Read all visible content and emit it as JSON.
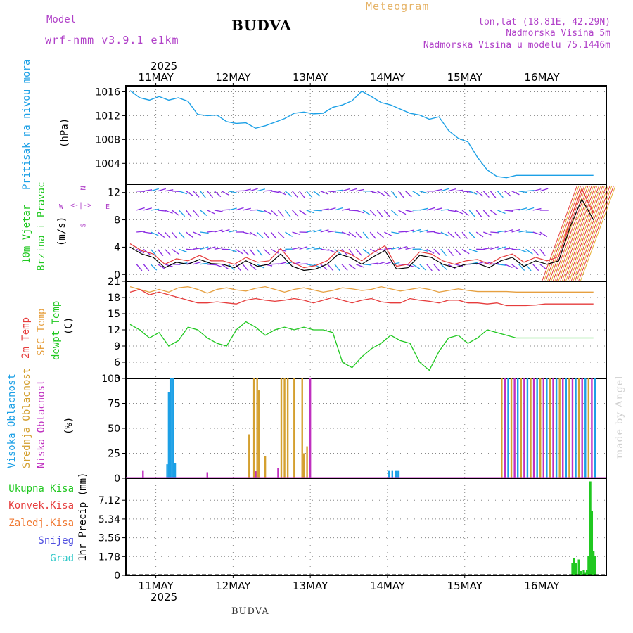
{
  "header": {
    "model_label": "Model",
    "model_name": "wrf-nmm_v3.9.1 e1km",
    "station": "BUDVA",
    "meteogram": "Meteogram",
    "lonlat": "lon,lat (18.81E, 42.29N)",
    "altitude": "Nadmorska Visina 5m",
    "model_altitude": "Nadmorska Visina u modelu 75.1446m",
    "footer_station": "BUDVA",
    "watermark": "made by Angel"
  },
  "colors": {
    "pressure": "#1ca0e6",
    "sfc_temp": "#e6a040",
    "temp2m": "#e63c3c",
    "dewpt": "#20c820",
    "high_cloud": "#1ca0e6",
    "mid_cloud": "#d4a030",
    "low_cloud": "#c030c0",
    "total_precip": "#20c820",
    "wind_line": "#000000",
    "wind_gust": "#e63c3c"
  },
  "chart_data": [
    {
      "type": "line",
      "panel": "pressure",
      "ylabel_lines": [
        "Pritisak na nivou mora"
      ],
      "unit": "(hPa)",
      "ylim": [
        1000.5,
        1017
      ],
      "yticks": [
        "1016",
        "1012",
        "1008",
        "1004"
      ],
      "ytick_values": [
        1016,
        1012,
        1008,
        1004
      ],
      "x_top_labels": [
        "11MAY",
        "12MAY",
        "13MAY",
        "14MAY",
        "15MAY",
        "16MAY"
      ],
      "x_bottom_labels": [
        "11MAY",
        "12MAY",
        "13MAY",
        "14MAY",
        "15MAY",
        "16MAY"
      ],
      "year": "2025",
      "x": [
        0,
        3,
        6,
        9,
        12,
        15,
        18,
        21,
        24,
        27,
        30,
        33,
        36,
        39,
        42,
        45,
        48,
        51,
        54,
        57,
        60,
        63,
        66,
        69,
        72,
        75,
        78,
        81,
        84,
        87,
        90,
        93,
        96,
        99,
        102,
        105,
        108,
        111,
        114,
        117,
        120,
        123,
        126,
        129,
        132,
        135,
        138,
        141,
        144
      ],
      "series": [
        {
          "values": [
            1016.2,
            1015.0,
            1014.6,
            1015.2,
            1014.6,
            1015.0,
            1014.4,
            1012.2,
            1012.0,
            1012.1,
            1011.0,
            1010.7,
            1010.8,
            1009.9,
            1010.3,
            1010.9,
            1011.5,
            1012.4,
            1012.6,
            1012.3,
            1012.4,
            1013.4,
            1013.8,
            1014.5,
            1016.1,
            1015.2,
            1014.2,
            1013.8,
            1013.1,
            1012.4,
            1012.1,
            1011.4,
            1011.8,
            1009.5,
            1008.2,
            1007.6,
            1005.0,
            1002.9,
            1001.8,
            1001.6,
            1002.0,
            1002.0,
            1002.0,
            1002.0,
            1002.0,
            1002.0,
            1002.0,
            1002.0,
            1002.0
          ]
        }
      ]
    },
    {
      "type": "line",
      "panel": "wind",
      "ylabel_lines": [
        "10m Vjetar",
        "Brzina i Pravac"
      ],
      "unit": "(m/s)",
      "compass": {
        "n": "N",
        "s": "S",
        "w": "W",
        "e": "E"
      },
      "ylim": [
        -1,
        13.2
      ],
      "yticks": [
        "12",
        "8",
        "4",
        "0"
      ],
      "ytick_values": [
        12,
        8,
        4,
        0
      ],
      "x": [
        0,
        3,
        6,
        9,
        12,
        15,
        18,
        21,
        24,
        27,
        30,
        33,
        36,
        39,
        42,
        45,
        48,
        51,
        54,
        57,
        60,
        63,
        66,
        69,
        72,
        75,
        78,
        81,
        84,
        87,
        90,
        93,
        96,
        99,
        102,
        105,
        108,
        111,
        114,
        117,
        120
      ],
      "series": [
        {
          "name": "speed",
          "values": [
            4.0,
            3.0,
            2.5,
            1.0,
            1.8,
            1.5,
            2.2,
            1.6,
            1.5,
            1.0,
            2.0,
            1.2,
            1.5,
            3.0,
            1.2,
            0.6,
            0.8,
            1.5,
            3.0,
            2.5,
            1.5,
            2.6,
            3.5,
            0.8,
            1.0,
            2.8,
            2.5,
            1.5,
            1.0,
            1.5,
            1.6,
            1.0,
            2.0,
            2.5,
            1.2,
            2.0,
            1.5,
            2.0,
            7.0,
            11.0,
            8.0
          ]
        },
        {
          "name": "gust",
          "values": [
            4.5,
            3.5,
            3.0,
            1.5,
            2.3,
            2.0,
            2.8,
            2.0,
            2.0,
            1.5,
            2.5,
            1.8,
            2.0,
            3.8,
            1.8,
            1.0,
            1.3,
            2.0,
            3.6,
            3.0,
            2.0,
            3.2,
            4.2,
            1.2,
            1.5,
            3.3,
            3.0,
            2.0,
            1.5,
            2.0,
            2.2,
            1.5,
            2.5,
            3.0,
            1.8,
            2.5,
            2.0,
            2.6,
            8.0,
            12.5,
            9.0
          ]
        }
      ]
    },
    {
      "type": "line",
      "panel": "temperature",
      "ylabel_lines": [
        "2m Temp",
        "SFC Temp",
        "dewpt Temp"
      ],
      "unit": "(C)",
      "ylim": [
        3,
        21
      ],
      "yticks": [
        "21",
        "18",
        "15",
        "12",
        "9",
        "6",
        "3"
      ],
      "ytick_values": [
        21,
        18,
        15,
        12,
        9,
        6,
        3
      ],
      "x": [
        0,
        3,
        6,
        9,
        12,
        15,
        18,
        21,
        24,
        27,
        30,
        33,
        36,
        39,
        42,
        45,
        48,
        51,
        54,
        57,
        60,
        63,
        66,
        69,
        72,
        75,
        78,
        81,
        84,
        87,
        90,
        93,
        96,
        99,
        102,
        105,
        108,
        111,
        114,
        117,
        120,
        123,
        126,
        129,
        132,
        135,
        138,
        141,
        144
      ],
      "series": [
        {
          "name": "2m Temp",
          "values": [
            19.0,
            19.5,
            18.5,
            19.0,
            18.5,
            18.0,
            17.5,
            17.0,
            17.0,
            17.2,
            17.0,
            16.8,
            17.5,
            17.8,
            17.5,
            17.3,
            17.5,
            17.8,
            17.5,
            17.0,
            17.5,
            18.0,
            17.5,
            17.0,
            17.5,
            17.8,
            17.2,
            17.0,
            17.0,
            17.8,
            17.5,
            17.3,
            17.0,
            17.5,
            17.5,
            17.0,
            17.0,
            16.8,
            17.0,
            16.5,
            16.5,
            16.5,
            16.6,
            16.8,
            16.8,
            16.8,
            16.8,
            16.8,
            16.8
          ]
        },
        {
          "name": "SFC Temp",
          "values": [
            20.0,
            19.5,
            19.0,
            19.5,
            19.0,
            19.8,
            20.0,
            19.5,
            18.8,
            19.5,
            19.8,
            19.4,
            19.2,
            19.7,
            20.0,
            19.5,
            19.0,
            19.5,
            19.8,
            19.4,
            19.0,
            19.3,
            19.8,
            19.6,
            19.3,
            19.5,
            20.0,
            19.6,
            19.2,
            19.5,
            19.8,
            19.5,
            19.0,
            19.3,
            19.6,
            19.3,
            19.1,
            19.1,
            19.1,
            19.1,
            19.0,
            19.0,
            19.0,
            19.0,
            19.0,
            19.0,
            19.0,
            19.0,
            19.0
          ]
        },
        {
          "name": "dewpt Temp",
          "values": [
            13.0,
            12.0,
            10.5,
            11.5,
            9.0,
            10.0,
            12.5,
            12.0,
            10.5,
            9.5,
            9.0,
            12.0,
            13.5,
            12.5,
            11.0,
            12.0,
            12.5,
            12.0,
            12.5,
            12.0,
            12.0,
            11.5,
            6.0,
            5.0,
            7.0,
            8.5,
            9.5,
            11.0,
            10.0,
            9.5,
            6.0,
            4.5,
            8.0,
            10.5,
            11.0,
            9.5,
            10.5,
            12.0,
            11.5,
            11.0,
            10.5,
            10.5,
            10.5,
            10.5,
            10.5,
            10.5,
            10.5,
            10.5,
            10.5
          ]
        }
      ]
    },
    {
      "type": "bar",
      "panel": "clouds",
      "ylabel_lines": [
        "Visoka Oblacnost",
        "Srednja Oblacnost",
        "Niska Oblacnost"
      ],
      "unit": "(%)",
      "ylim": [
        0,
        100
      ],
      "yticks": [
        "100",
        "75",
        "50",
        "25",
        "0"
      ],
      "ytick_values": [
        100,
        75,
        50,
        25,
        0
      ],
      "series": [
        {
          "name": "Visoka Oblacnost",
          "x": [
            11.5,
            12.0,
            12.5,
            13.0,
            13.5,
            14.0,
            80.5,
            81.5,
            82.5,
            83.0,
            83.5
          ],
          "values": [
            14,
            86,
            100,
            100,
            100,
            15,
            8,
            8,
            8,
            8,
            8
          ]
        },
        {
          "name": "Srednja Oblacnost",
          "x": [
            37.0,
            38.5,
            39.5,
            40.0,
            42.0,
            47.0,
            48.0,
            49.0,
            51.0,
            53.5,
            54.0,
            55.0
          ],
          "values": [
            44,
            100,
            100,
            88,
            22,
            100,
            100,
            100,
            100,
            100,
            25,
            32
          ]
        },
        {
          "name": "Niska Oblacnost",
          "x": [
            4.0,
            24.0,
            39.0,
            46.0,
            56.0
          ],
          "values": [
            8,
            6,
            7,
            10,
            100
          ]
        }
      ]
    },
    {
      "type": "bar",
      "panel": "precip",
      "ylabel_lines": [
        "1hr Precip (mm)"
      ],
      "ylim": [
        0,
        9.2
      ],
      "yticks": [
        "7.12",
        "5.34",
        "3.56",
        "1.78",
        "0"
      ],
      "ytick_values": [
        7.12,
        5.34,
        3.56,
        1.78,
        0
      ],
      "legend": [
        "Ukupna Kisa",
        "Konvek.Kisa",
        "Zaledj.Kisa",
        "Snijeg",
        "Grad"
      ],
      "series": [
        {
          "name": "Ukupna Kisa",
          "x": [
            137.5,
            138.0,
            138.5,
            139.5,
            140.0,
            141.0,
            141.5,
            142.0,
            142.5,
            143.0,
            143.5,
            144.0,
            144.5
          ],
          "values": [
            1.2,
            1.6,
            1.2,
            1.5,
            0.4,
            0.5,
            0.3,
            0.5,
            1.8,
            8.9,
            6.1,
            2.3,
            1.8
          ]
        }
      ]
    }
  ]
}
